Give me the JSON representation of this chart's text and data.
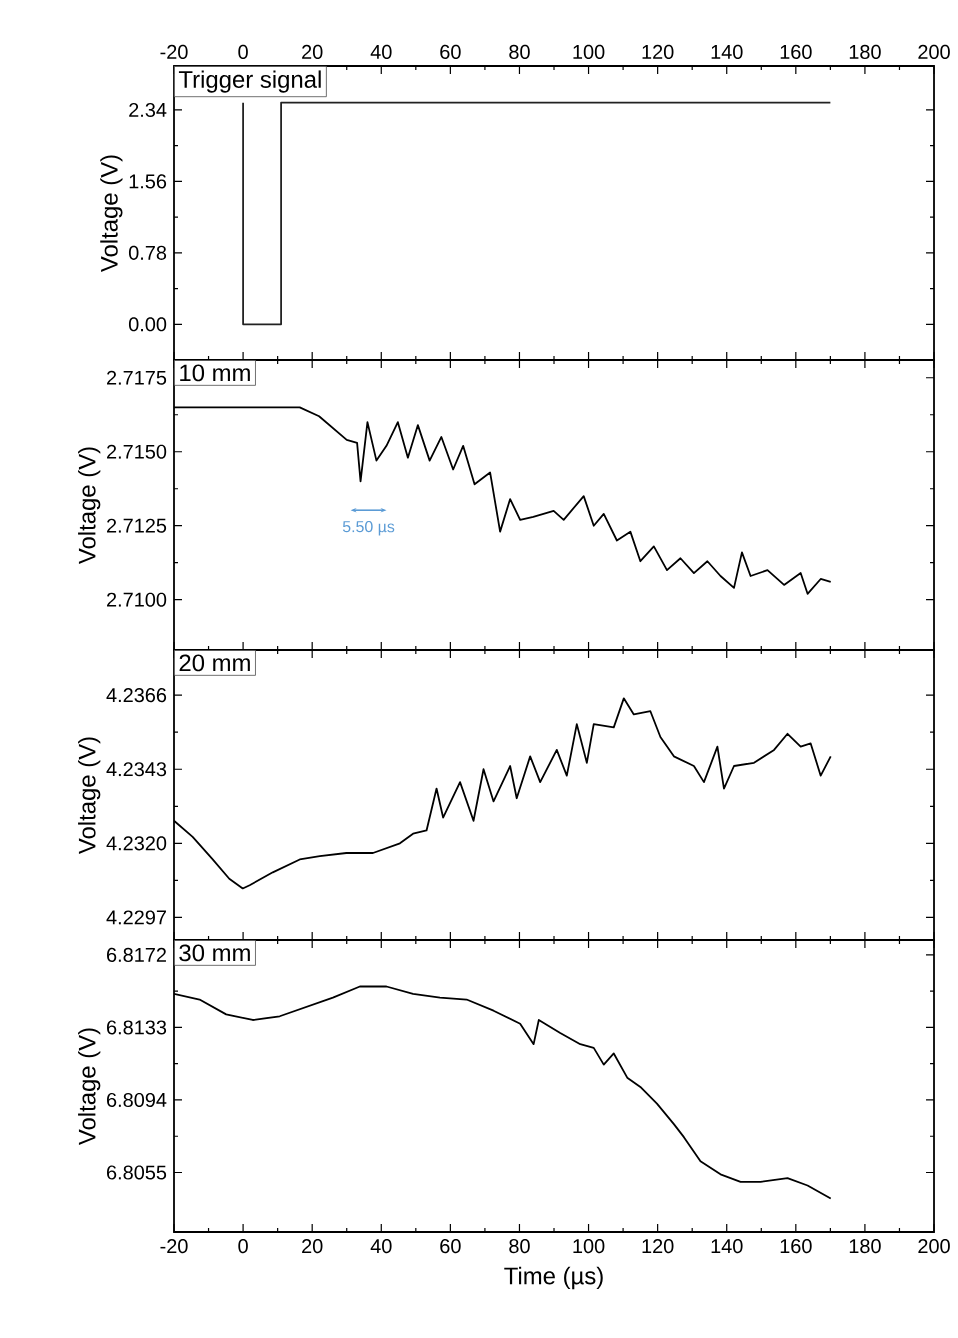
{
  "chart_data": [
    {
      "type": "line",
      "ylabel": "Voltage (V)",
      "annotations": [
        "Trigger signal"
      ],
      "color": "#222222",
      "x": [
        0,
        0,
        11,
        11,
        170
      ],
      "values": [
        2.42,
        0,
        0,
        2.42,
        2.42
      ],
      "xlim": [
        -20,
        200
      ],
      "xticks": [
        -20,
        0,
        20,
        40,
        60,
        80,
        100,
        120,
        140,
        160,
        180,
        200
      ],
      "ylim": [
        -0.39,
        2.82
      ],
      "yticks": [
        {
          "value": 0,
          "label": "0.00"
        },
        0.78,
        1.56,
        2.34
      ]
    },
    {
      "type": "line",
      "ylabel": "Voltage (V)",
      "annotations": [
        "10 mm",
        "5.50 µs"
      ],
      "color": "#000000",
      "tick_labels": "y",
      "x": [
        -20,
        16.4,
        22,
        30,
        33,
        34,
        36,
        38.6,
        41.5,
        44.8,
        47.7,
        50.6,
        54,
        57.4,
        60.8,
        63.7,
        67,
        71.5,
        74.4,
        77.3,
        80.2,
        84,
        89.9,
        92.8,
        98.6,
        101.5,
        104.4,
        108.2,
        112.1,
        115,
        118.9,
        122.7,
        126.6,
        130.5,
        134.4,
        138.2,
        142.1,
        144.4,
        146.9,
        151.8,
        156.6,
        161.4,
        163.4,
        167.2,
        170.1
      ],
      "values": [
        2.7165,
        2.7165,
        2.7162,
        2.7154,
        2.7153,
        2.714,
        2.716,
        2.7147,
        2.7152,
        2.716,
        2.7148,
        2.7159,
        2.7147,
        2.7155,
        2.7144,
        2.7152,
        2.7139,
        2.7143,
        2.7123,
        2.7134,
        2.7127,
        2.7128,
        2.713,
        2.7127,
        2.7135,
        2.7125,
        2.7129,
        2.712,
        2.7123,
        2.7113,
        2.7118,
        2.711,
        2.7114,
        2.7109,
        2.7113,
        2.7108,
        2.7104,
        2.7116,
        2.7108,
        2.711,
        2.7105,
        2.7109,
        2.7102,
        2.7107,
        2.7106
      ],
      "xlim": [
        -20,
        200
      ],
      "xticks": [
        -20,
        0,
        20,
        40,
        60,
        80,
        100,
        120,
        140,
        160,
        180,
        200
      ],
      "ylim": [
        2.7083,
        2.7181
      ],
      "yticks": [
        {
          "value": 2.71,
          "label": "2.7100"
        },
        2.7125,
        {
          "value": 2.715,
          "label": "2.7150"
        },
        2.7175
      ]
    },
    {
      "type": "line",
      "ylabel": "Voltage (V)",
      "annotations": [
        "20 mm"
      ],
      "color": "#000000",
      "tick_labels": "y",
      "x": [
        -20,
        -14.6,
        -8.8,
        -4,
        -0.1,
        1.9,
        8.6,
        16.4,
        22.2,
        29.9,
        37.6,
        45.4,
        49.2,
        53.1,
        56,
        57.9,
        62.8,
        66.7,
        69.6,
        72.5,
        77.3,
        79.2,
        83.1,
        86,
        90.8,
        93.7,
        96.6,
        99.5,
        101.5,
        107.3,
        110.2,
        113.1,
        117.9,
        120.8,
        124.7,
        130.5,
        133.4,
        137.3,
        139.2,
        142.1,
        147.9,
        153.7,
        157.6,
        161.4,
        164.3,
        167.2,
        170.1
      ],
      "values": [
        4.2327,
        4.2322,
        4.2315,
        4.2309,
        4.2306,
        4.2307,
        4.2311,
        4.2315,
        4.2316,
        4.2317,
        4.2317,
        4.232,
        4.2323,
        4.2324,
        4.2337,
        4.2328,
        4.2339,
        4.2327,
        4.2343,
        4.2333,
        4.2344,
        4.2334,
        4.2347,
        4.2339,
        4.2349,
        4.2341,
        4.2357,
        4.2345,
        4.2357,
        4.2356,
        4.2365,
        4.236,
        4.2361,
        4.2353,
        4.2347,
        4.2344,
        4.2339,
        4.235,
        4.2337,
        4.2344,
        4.2345,
        4.2349,
        4.2354,
        4.235,
        4.2351,
        4.2341,
        4.2347
      ],
      "xlim": [
        -20,
        200
      ],
      "xticks": [
        -20,
        0,
        20,
        40,
        60,
        80,
        100,
        120,
        140,
        160,
        180,
        200
      ],
      "ylim": [
        4.229,
        4.238
      ],
      "yticks": [
        4.2297,
        {
          "value": 4.232,
          "label": "4.2320"
        },
        4.2343,
        4.2366
      ]
    },
    {
      "type": "line",
      "ylabel": "Voltage (V)",
      "xlabel": "Time (µs)",
      "annotations": [
        "30 mm"
      ],
      "color": "#000000",
      "x": [
        -20,
        -12.6,
        -4.9,
        2.8,
        10.6,
        18.3,
        26,
        33.8,
        41.5,
        49.2,
        57,
        64.7,
        72.5,
        80.2,
        84.1,
        85.6,
        91.8,
        97.6,
        101.5,
        104.4,
        107.3,
        111.2,
        115,
        119.8,
        124.7,
        127.6,
        132.4,
        138.2,
        144,
        149.8,
        157.6,
        163.4,
        170.1
      ],
      "values": [
        6.8151,
        6.8148,
        6.814,
        6.8137,
        6.8139,
        6.8144,
        6.8149,
        6.8155,
        6.8155,
        6.8151,
        6.8149,
        6.8148,
        6.8142,
        6.8135,
        6.8124,
        6.8137,
        6.813,
        6.8124,
        6.8122,
        6.8113,
        6.8119,
        6.8106,
        6.8101,
        6.8092,
        6.8081,
        6.8074,
        6.8061,
        6.8054,
        6.805,
        6.805,
        6.8052,
        6.8048,
        6.8041
      ],
      "xlim": [
        -20,
        200
      ],
      "xticks": [
        -20,
        0,
        20,
        40,
        60,
        80,
        100,
        120,
        140,
        160,
        180,
        200
      ],
      "ylim": [
        6.8023,
        6.818
      ],
      "yticks": [
        6.8055,
        6.8094,
        6.8133,
        6.8172
      ]
    }
  ]
}
